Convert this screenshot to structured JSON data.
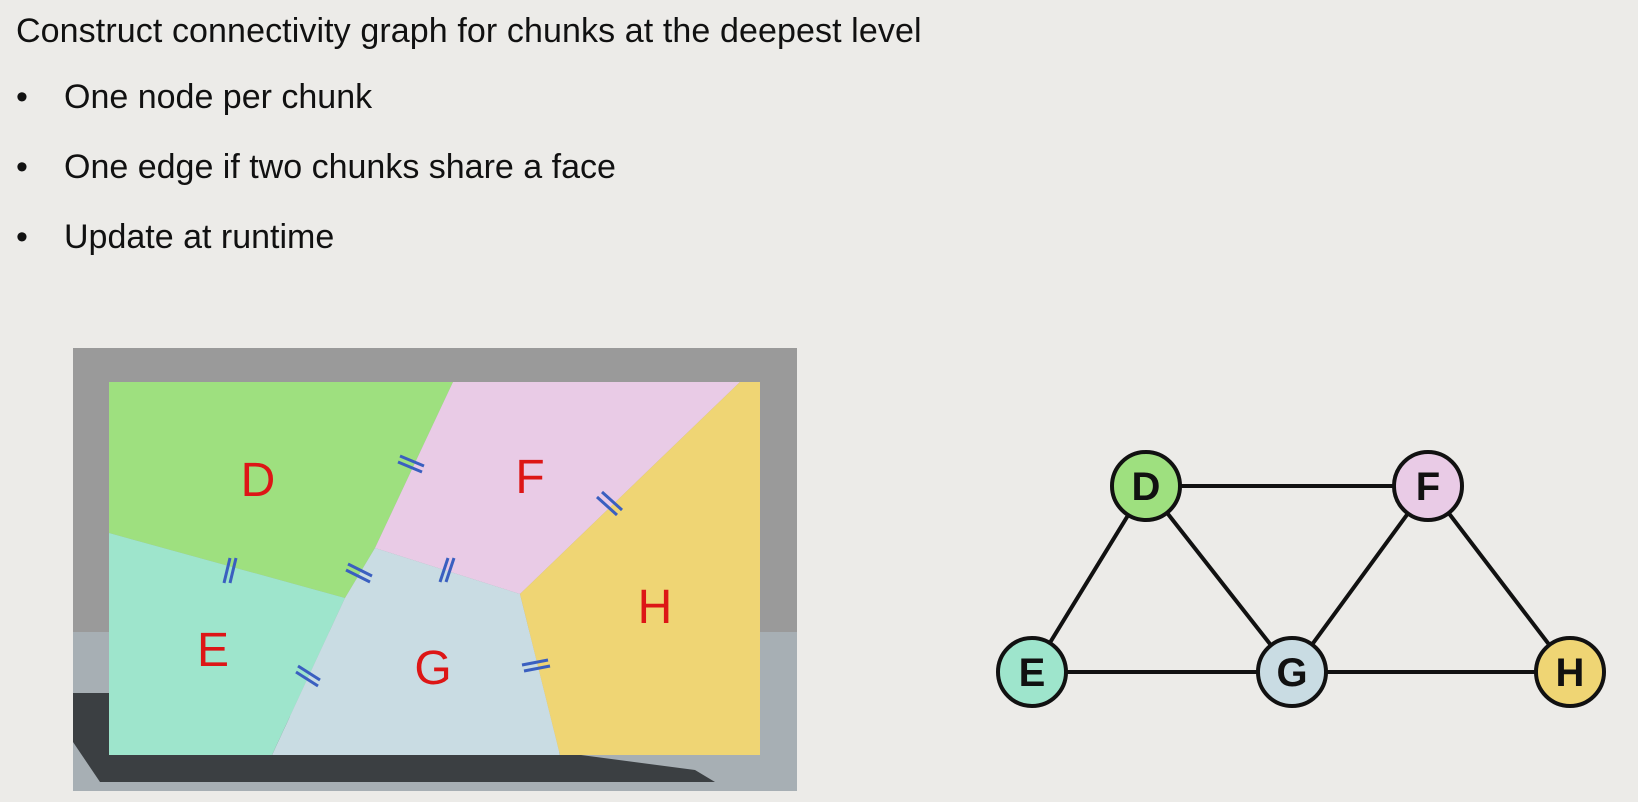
{
  "headline": "Construct connectivity graph for chunks at the deepest level",
  "bullets": [
    "One node per chunk",
    "One edge if two chunks share a face",
    "Update at runtime"
  ],
  "bullet_glyph": "•",
  "chunks": [
    {
      "id": "D",
      "label": "D",
      "color": "#9ee07f"
    },
    {
      "id": "F",
      "label": "F",
      "color": "#e9cbe6"
    },
    {
      "id": "E",
      "label": "E",
      "color": "#9ee5cc"
    },
    {
      "id": "G",
      "label": "G",
      "color": "#c9dce3"
    },
    {
      "id": "H",
      "label": "H",
      "color": "#efd574"
    }
  ],
  "graph": {
    "nodes": [
      {
        "id": "D",
        "label": "D",
        "color": "#9ee07f"
      },
      {
        "id": "F",
        "label": "F",
        "color": "#e9cbe6"
      },
      {
        "id": "E",
        "label": "E",
        "color": "#9ee5cc"
      },
      {
        "id": "G",
        "label": "G",
        "color": "#c9dce3"
      },
      {
        "id": "H",
        "label": "H",
        "color": "#efd574"
      }
    ],
    "edges": [
      [
        "D",
        "F"
      ],
      [
        "D",
        "E"
      ],
      [
        "D",
        "G"
      ],
      [
        "F",
        "G"
      ],
      [
        "F",
        "H"
      ],
      [
        "E",
        "G"
      ],
      [
        "G",
        "H"
      ]
    ]
  },
  "colors": {
    "label_red": "#dd1616",
    "edge_marker": "#3a5fc0",
    "frame_gray": "#9a9a9a",
    "floor_gray": "#a7afb4",
    "shadow": "#3b3f42"
  }
}
